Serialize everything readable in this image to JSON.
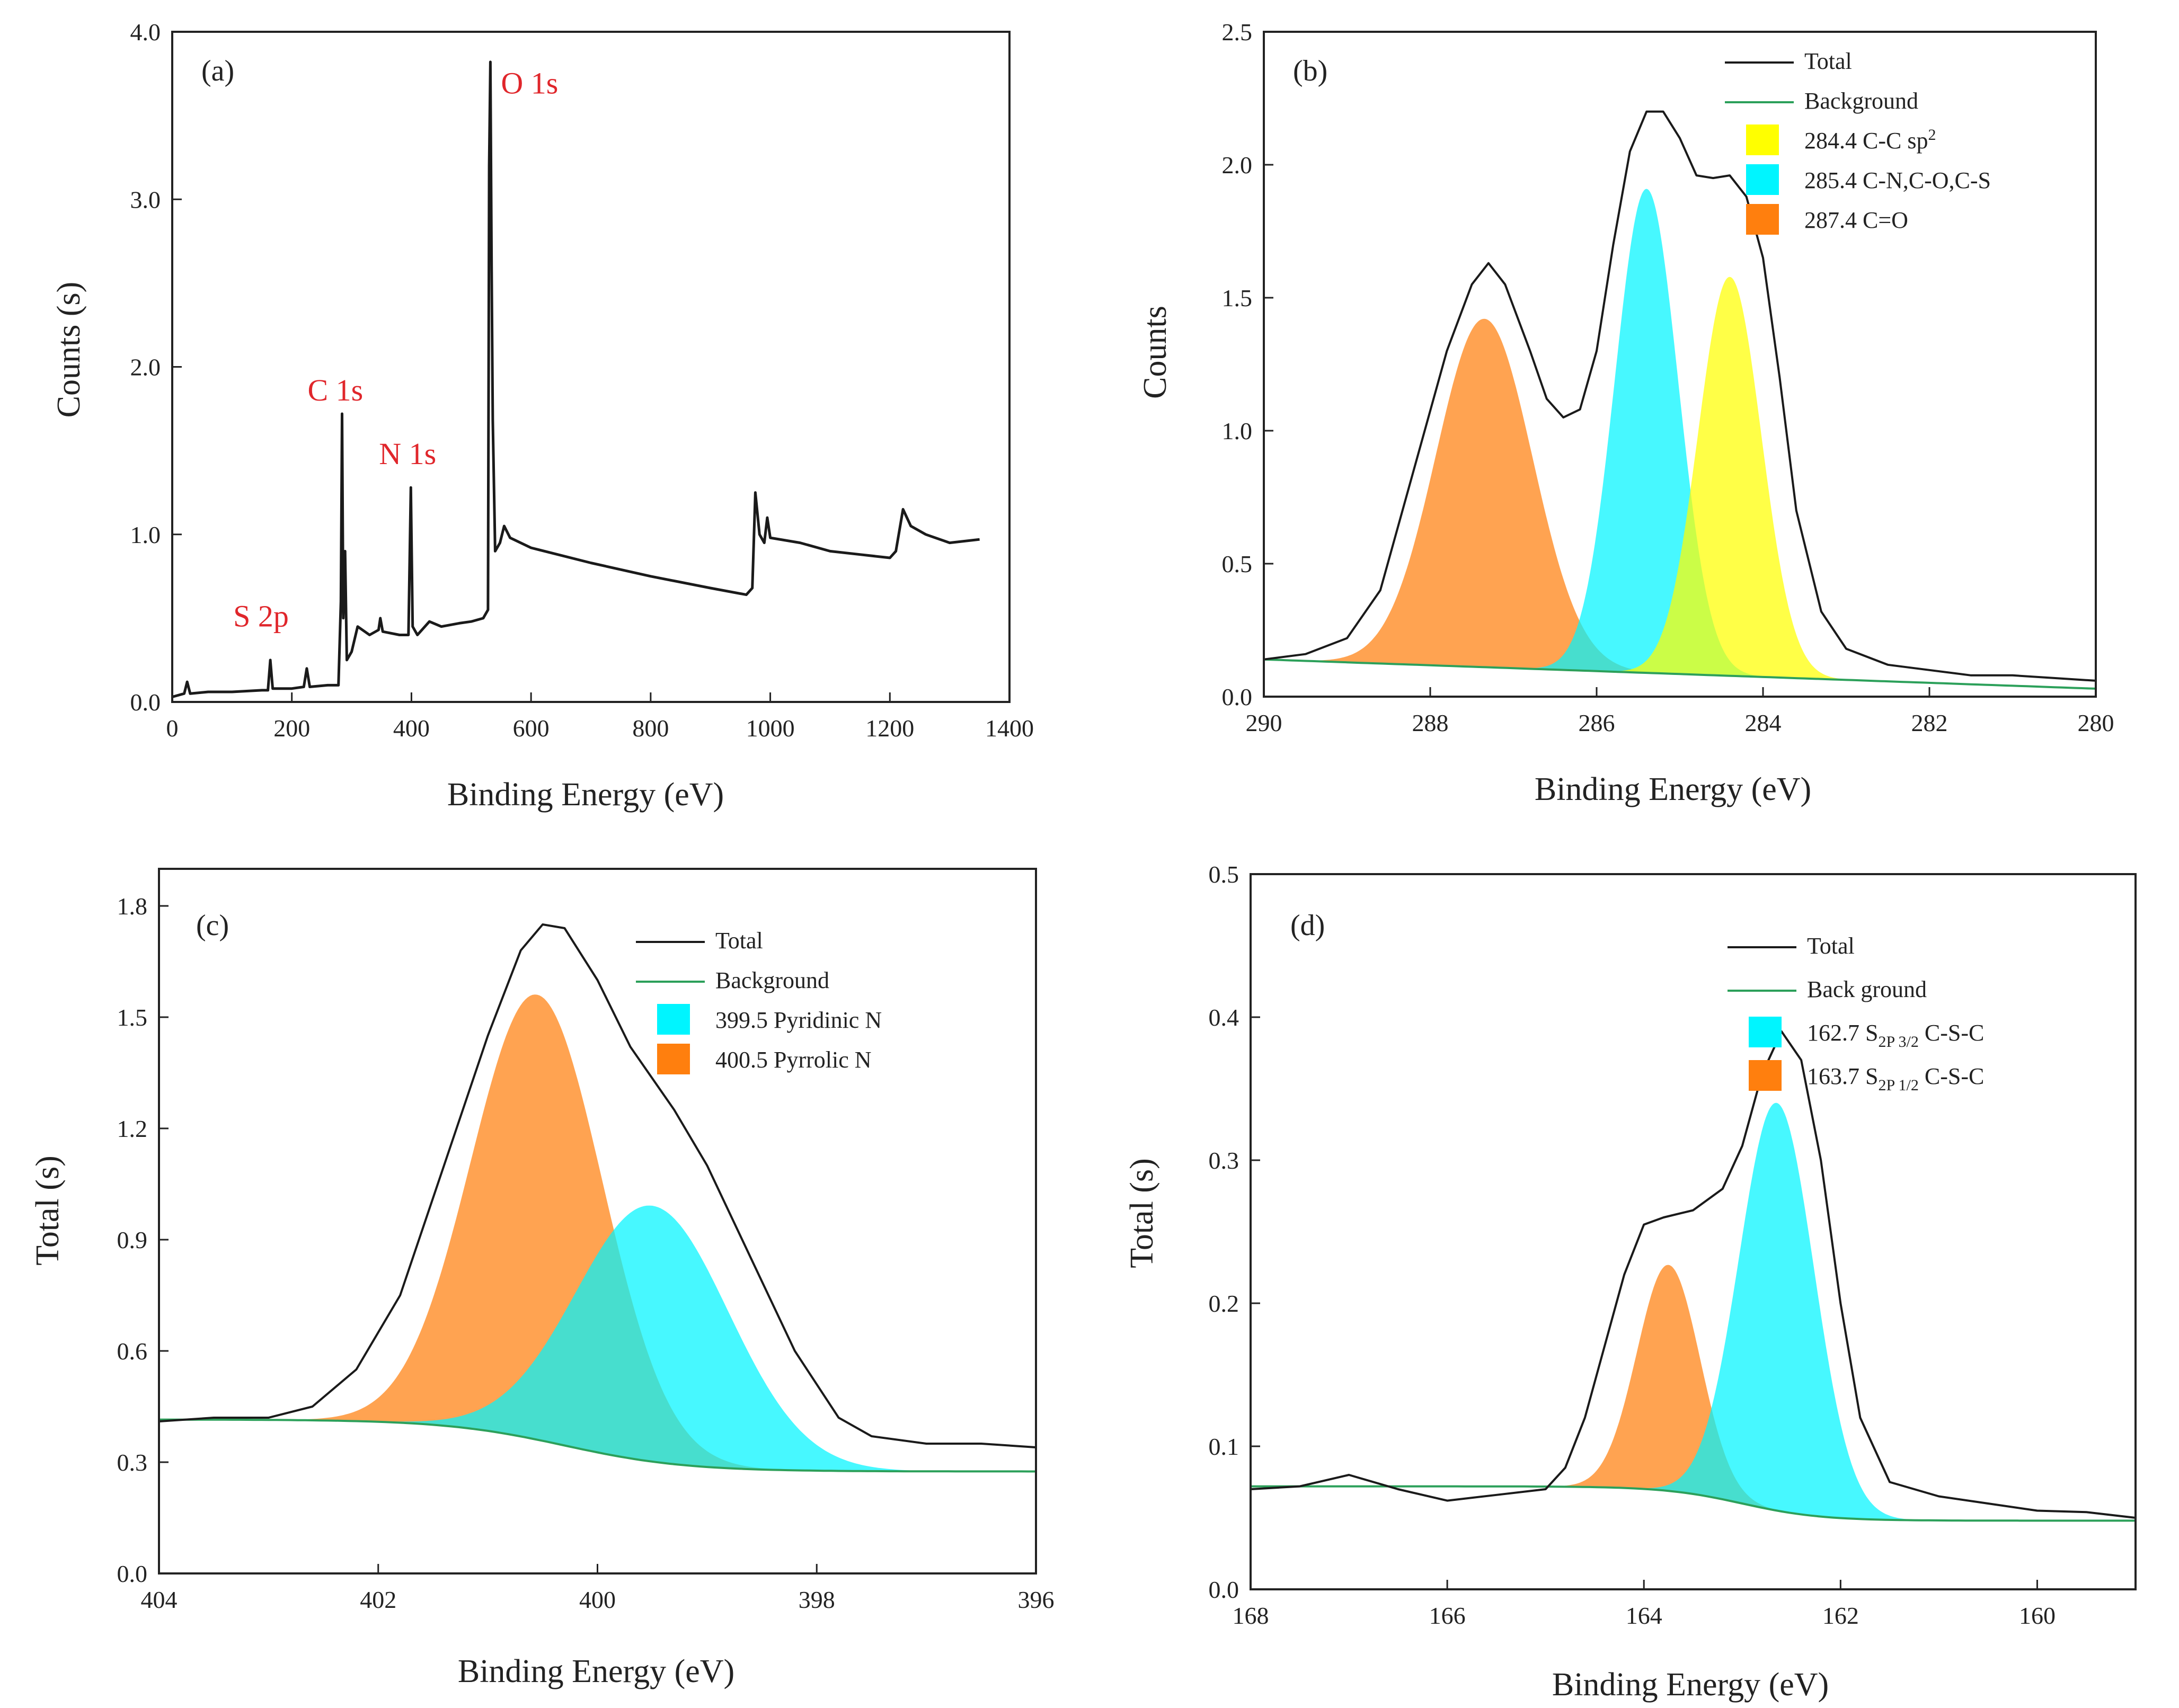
{
  "colors": {
    "total": "#1a1a1a",
    "background_line": "#2ca05a",
    "yellow": "#ffff00",
    "cyan": "#00f5ff",
    "orange": "#ff7f0e",
    "peak_label": "#e0262b"
  },
  "chart_data": [
    {
      "id": "a",
      "type": "line",
      "panel_label": "(a)",
      "xlabel": "Binding Energy (eV)",
      "ylabel": "Counts (s)",
      "xlim": [
        0,
        1400
      ],
      "ylim": [
        0,
        4.0
      ],
      "xticks": [
        "0",
        "200",
        "400",
        "600",
        "800",
        "1000",
        "1200",
        "1400"
      ],
      "yticks": [
        "0.0",
        "1.0",
        "2.0",
        "3.0",
        "4.0"
      ],
      "peak_labels": [
        {
          "text": "O 1s",
          "x": 532,
          "y": 3.6
        },
        {
          "text": "C 1s",
          "x": 284,
          "y": 1.8
        },
        {
          "text": "N 1s",
          "x": 399,
          "y": 1.42
        },
        {
          "text": "S 2p",
          "x": 164,
          "y": 0.45
        }
      ],
      "series": [
        {
          "name": "Survey",
          "points": [
            [
              0,
              0.03
            ],
            [
              20,
              0.05
            ],
            [
              25,
              0.12
            ],
            [
              30,
              0.05
            ],
            [
              60,
              0.06
            ],
            [
              100,
              0.06
            ],
            [
              150,
              0.07
            ],
            [
              160,
              0.07
            ],
            [
              164,
              0.25
            ],
            [
              168,
              0.08
            ],
            [
              200,
              0.08
            ],
            [
              220,
              0.09
            ],
            [
              225,
              0.2
            ],
            [
              230,
              0.09
            ],
            [
              260,
              0.1
            ],
            [
              278,
              0.1
            ],
            [
              282,
              0.6
            ],
            [
              284,
              1.72
            ],
            [
              286,
              0.5
            ],
            [
              289,
              0.9
            ],
            [
              292,
              0.25
            ],
            [
              300,
              0.3
            ],
            [
              310,
              0.45
            ],
            [
              330,
              0.4
            ],
            [
              345,
              0.43
            ],
            [
              348,
              0.5
            ],
            [
              352,
              0.42
            ],
            [
              380,
              0.4
            ],
            [
              395,
              0.4
            ],
            [
              399,
              1.28
            ],
            [
              402,
              0.45
            ],
            [
              410,
              0.4
            ],
            [
              430,
              0.48
            ],
            [
              450,
              0.45
            ],
            [
              480,
              0.47
            ],
            [
              500,
              0.48
            ],
            [
              520,
              0.5
            ],
            [
              528,
              0.55
            ],
            [
              530,
              3.2
            ],
            [
              532,
              3.82
            ],
            [
              534,
              2.6
            ],
            [
              536,
              1.68
            ],
            [
              540,
              0.9
            ],
            [
              548,
              0.95
            ],
            [
              555,
              1.05
            ],
            [
              565,
              0.98
            ],
            [
              600,
              0.92
            ],
            [
              700,
              0.83
            ],
            [
              800,
              0.75
            ],
            [
              900,
              0.68
            ],
            [
              960,
              0.64
            ],
            [
              970,
              0.68
            ],
            [
              975,
              1.25
            ],
            [
              982,
              1.0
            ],
            [
              990,
              0.95
            ],
            [
              995,
              1.1
            ],
            [
              1000,
              0.98
            ],
            [
              1050,
              0.95
            ],
            [
              1100,
              0.9
            ],
            [
              1150,
              0.88
            ],
            [
              1200,
              0.86
            ],
            [
              1210,
              0.9
            ],
            [
              1222,
              1.15
            ],
            [
              1235,
              1.05
            ],
            [
              1260,
              1.0
            ],
            [
              1300,
              0.95
            ],
            [
              1350,
              0.97
            ]
          ]
        }
      ]
    },
    {
      "id": "b",
      "type": "area",
      "panel_label": "(b)",
      "xlabel": "Binding Energy (eV)",
      "ylabel": "Counts",
      "xlim": [
        290,
        280
      ],
      "ylim": [
        0,
        2.5
      ],
      "xticks": [
        "290",
        "288",
        "286",
        "284",
        "282",
        "280"
      ],
      "yticks": [
        "0.0",
        "0.5",
        "1.0",
        "1.5",
        "2.0",
        "2.5"
      ],
      "legend_position": "top-right",
      "legend": [
        {
          "kind": "line",
          "label": "Total",
          "color_key": "total"
        },
        {
          "kind": "line",
          "label": "Background",
          "color_key": "background_line"
        },
        {
          "kind": "box",
          "label": "284.4 C-C sp",
          "sup": "2",
          "color_key": "yellow"
        },
        {
          "kind": "box",
          "label": "285.4 C-N,C-O,C-S",
          "color_key": "cyan"
        },
        {
          "kind": "box",
          "label": "287.4 C=O",
          "color_key": "orange"
        }
      ],
      "background": [
        [
          290,
          0.14
        ],
        [
          280,
          0.03
        ]
      ],
      "components": [
        {
          "center": 287.35,
          "height": 1.31,
          "sigma": 0.58,
          "color_key": "orange"
        },
        {
          "center": 285.4,
          "height": 1.82,
          "sigma": 0.38,
          "color_key": "cyan"
        },
        {
          "center": 284.4,
          "height": 1.5,
          "sigma": 0.38,
          "color_key": "yellow"
        }
      ],
      "total": [
        [
          290,
          0.14
        ],
        [
          289.5,
          0.16
        ],
        [
          289,
          0.22
        ],
        [
          288.6,
          0.4
        ],
        [
          288.2,
          0.85
        ],
        [
          287.8,
          1.3
        ],
        [
          287.5,
          1.55
        ],
        [
          287.3,
          1.63
        ],
        [
          287.1,
          1.55
        ],
        [
          286.8,
          1.3
        ],
        [
          286.6,
          1.12
        ],
        [
          286.4,
          1.05
        ],
        [
          286.2,
          1.08
        ],
        [
          286.0,
          1.3
        ],
        [
          285.8,
          1.7
        ],
        [
          285.6,
          2.05
        ],
        [
          285.4,
          2.2
        ],
        [
          285.2,
          2.2
        ],
        [
          285.0,
          2.1
        ],
        [
          284.8,
          1.96
        ],
        [
          284.6,
          1.95
        ],
        [
          284.4,
          1.96
        ],
        [
          284.2,
          1.88
        ],
        [
          284.0,
          1.65
        ],
        [
          283.8,
          1.2
        ],
        [
          283.6,
          0.7
        ],
        [
          283.3,
          0.32
        ],
        [
          283.0,
          0.18
        ],
        [
          282.5,
          0.12
        ],
        [
          282,
          0.1
        ],
        [
          281.5,
          0.08
        ],
        [
          281,
          0.08
        ],
        [
          280.5,
          0.07
        ],
        [
          280,
          0.06
        ]
      ]
    },
    {
      "id": "c",
      "type": "area",
      "panel_label": "(c)",
      "xlabel": "Binding Energy (eV)",
      "ylabel": "Total (s)",
      "xlim": [
        404,
        396
      ],
      "ylim": [
        0,
        1.9
      ],
      "xticks": [
        "404",
        "402",
        "400",
        "398",
        "396"
      ],
      "yticks": [
        "0.0",
        "0.3",
        "0.6",
        "0.9",
        "1.2",
        "1.5",
        "1.8"
      ],
      "legend_position": "top-right",
      "legend": [
        {
          "kind": "line",
          "label": "Total",
          "color_key": "total"
        },
        {
          "kind": "line",
          "label": "Background",
          "color_key": "background_line"
        },
        {
          "kind": "box",
          "label": "399.5 Pyridinic N",
          "color_key": "cyan"
        },
        {
          "kind": "box",
          "label": "400.5 Pyrrolic N",
          "color_key": "orange"
        }
      ],
      "background_sigmoid": {
        "high": 0.415,
        "low": 0.275,
        "center": 400.3,
        "width": 0.55
      },
      "components": [
        {
          "center": 400.55,
          "height": 1.2,
          "sigma": 0.6,
          "color_key": "orange"
        },
        {
          "center": 399.5,
          "height": 0.69,
          "sigma": 0.7,
          "color_key": "cyan"
        }
      ],
      "total": [
        [
          404,
          0.41
        ],
        [
          403.5,
          0.42
        ],
        [
          403,
          0.42
        ],
        [
          402.6,
          0.45
        ],
        [
          402.2,
          0.55
        ],
        [
          401.8,
          0.75
        ],
        [
          401.4,
          1.1
        ],
        [
          401.0,
          1.45
        ],
        [
          400.7,
          1.68
        ],
        [
          400.5,
          1.75
        ],
        [
          400.3,
          1.74
        ],
        [
          400.0,
          1.6
        ],
        [
          399.7,
          1.42
        ],
        [
          399.3,
          1.25
        ],
        [
          399.0,
          1.1
        ],
        [
          398.6,
          0.85
        ],
        [
          398.2,
          0.6
        ],
        [
          397.8,
          0.42
        ],
        [
          397.5,
          0.37
        ],
        [
          397,
          0.35
        ],
        [
          396.5,
          0.35
        ],
        [
          396,
          0.34
        ]
      ]
    },
    {
      "id": "d",
      "type": "area",
      "panel_label": "(d)",
      "xlabel": "Binding Energy (eV)",
      "ylabel": "Total (s)",
      "xlim": [
        168,
        159
      ],
      "ylim": [
        0,
        0.5
      ],
      "xticks": [
        "168",
        "166",
        "164",
        "162",
        "160"
      ],
      "yticks": [
        "0.0",
        "0.1",
        "0.2",
        "0.3",
        "0.4",
        "0.5"
      ],
      "legend_position": "top-right",
      "legend": [
        {
          "kind": "line",
          "label": "Total",
          "color_key": "total"
        },
        {
          "kind": "line",
          "label": "Back ground",
          "color_key": "background_line"
        },
        {
          "kind": "box",
          "label": "162.7 S",
          "sub": "2P 3/2",
          "suffix": " C-S-C",
          "color_key": "cyan"
        },
        {
          "kind": "box",
          "label": "163.7 S",
          "sub": "2P 1/2",
          "suffix": " C-S-C",
          "color_key": "orange"
        }
      ],
      "background_sigmoid": {
        "high": 0.072,
        "low": 0.048,
        "center": 163.0,
        "width": 0.4
      },
      "components": [
        {
          "center": 163.75,
          "height": 0.158,
          "sigma": 0.32,
          "color_key": "orange"
        },
        {
          "center": 162.65,
          "height": 0.285,
          "sigma": 0.38,
          "color_key": "cyan"
        }
      ],
      "total": [
        [
          168,
          0.07
        ],
        [
          167.5,
          0.072
        ],
        [
          167,
          0.08
        ],
        [
          166.5,
          0.07
        ],
        [
          166,
          0.062
        ],
        [
          165.5,
          0.066
        ],
        [
          165,
          0.07
        ],
        [
          164.8,
          0.085
        ],
        [
          164.6,
          0.12
        ],
        [
          164.4,
          0.17
        ],
        [
          164.2,
          0.22
        ],
        [
          164.0,
          0.255
        ],
        [
          163.8,
          0.26
        ],
        [
          163.5,
          0.265
        ],
        [
          163.2,
          0.28
        ],
        [
          163.0,
          0.31
        ],
        [
          162.8,
          0.36
        ],
        [
          162.6,
          0.39
        ],
        [
          162.4,
          0.37
        ],
        [
          162.2,
          0.3
        ],
        [
          162.0,
          0.2
        ],
        [
          161.8,
          0.12
        ],
        [
          161.5,
          0.075
        ],
        [
          161,
          0.065
        ],
        [
          160.5,
          0.06
        ],
        [
          160,
          0.055
        ],
        [
          159.5,
          0.054
        ],
        [
          159,
          0.05
        ]
      ]
    }
  ]
}
